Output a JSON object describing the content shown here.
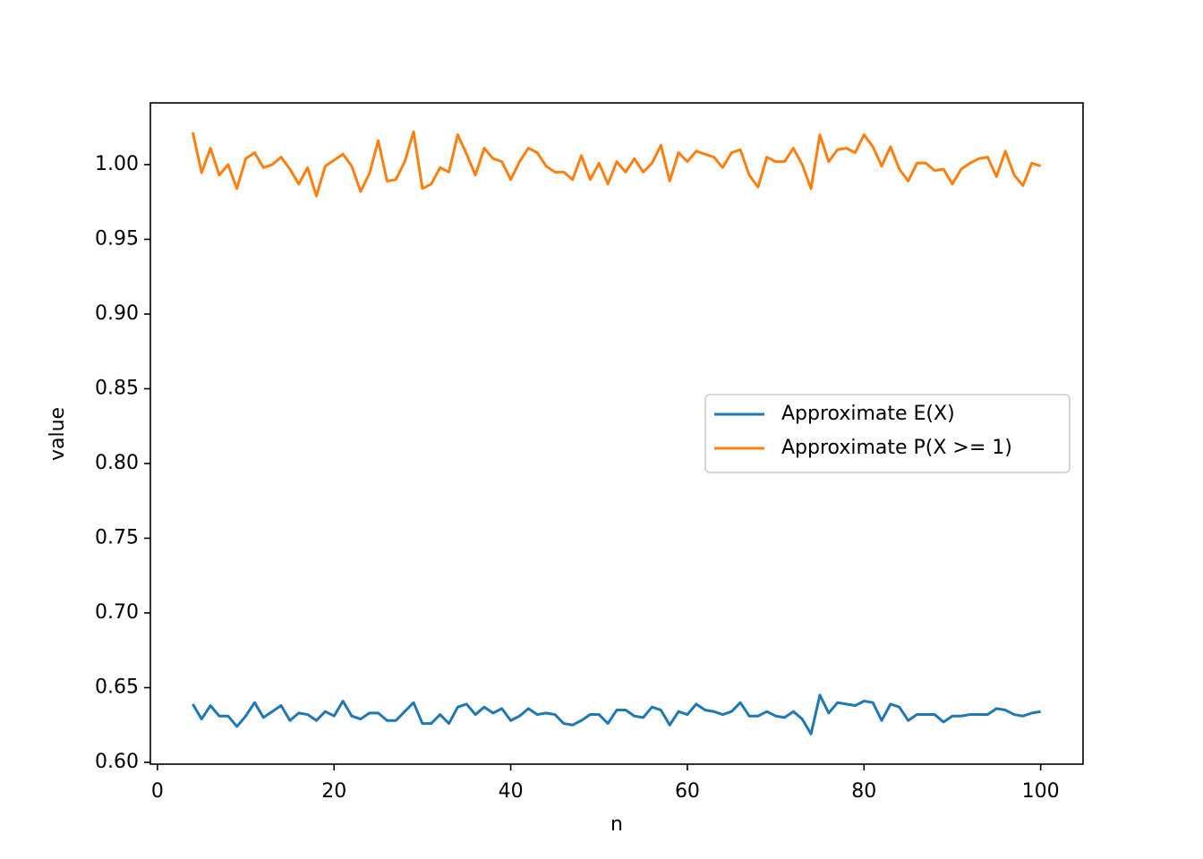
{
  "chart_data": {
    "type": "line",
    "xlabel": "n",
    "ylabel": "value",
    "x": [
      4,
      5,
      6,
      7,
      8,
      9,
      10,
      11,
      12,
      13,
      14,
      15,
      16,
      17,
      18,
      19,
      20,
      21,
      22,
      23,
      24,
      25,
      26,
      27,
      28,
      29,
      30,
      31,
      32,
      33,
      34,
      35,
      36,
      37,
      38,
      39,
      40,
      41,
      42,
      43,
      44,
      45,
      46,
      47,
      48,
      49,
      50,
      51,
      52,
      53,
      54,
      55,
      56,
      57,
      58,
      59,
      60,
      61,
      62,
      63,
      64,
      65,
      66,
      67,
      68,
      69,
      70,
      71,
      72,
      73,
      74,
      75,
      76,
      77,
      78,
      79,
      80,
      81,
      82,
      83,
      84,
      85,
      86,
      87,
      88,
      89,
      90,
      91,
      92,
      93,
      94,
      95,
      96,
      97,
      98,
      99,
      100
    ],
    "series": [
      {
        "name": "Approximate E(X)",
        "color": "#1f77b4",
        "values": [
          0.639,
          0.629,
          0.638,
          0.631,
          0.631,
          0.624,
          0.631,
          0.64,
          0.63,
          0.634,
          0.638,
          0.628,
          0.633,
          0.632,
          0.628,
          0.634,
          0.631,
          0.641,
          0.631,
          0.629,
          0.633,
          0.633,
          0.628,
          0.628,
          0.634,
          0.64,
          0.626,
          0.626,
          0.632,
          0.626,
          0.637,
          0.639,
          0.632,
          0.637,
          0.633,
          0.636,
          0.628,
          0.631,
          0.636,
          0.632,
          0.633,
          0.632,
          0.626,
          0.625,
          0.628,
          0.632,
          0.632,
          0.626,
          0.635,
          0.635,
          0.631,
          0.63,
          0.637,
          0.635,
          0.625,
          0.634,
          0.632,
          0.639,
          0.635,
          0.634,
          0.632,
          0.634,
          0.64,
          0.631,
          0.631,
          0.634,
          0.631,
          0.63,
          0.634,
          0.629,
          0.619,
          0.645,
          0.633,
          0.64,
          0.639,
          0.638,
          0.641,
          0.64,
          0.628,
          0.639,
          0.637,
          0.628,
          0.632,
          0.632,
          0.632,
          0.627,
          0.631,
          0.631,
          0.632,
          0.632,
          0.632,
          0.636,
          0.635,
          0.632,
          0.631,
          0.633,
          0.634
        ]
      },
      {
        "name": "Approximate P(X >= 1)",
        "color": "#ff7f0e",
        "values": [
          1.0216,
          0.9946,
          1.011,
          0.993,
          1.0,
          0.984,
          1.004,
          1.008,
          0.998,
          1.0,
          1.005,
          0.997,
          0.987,
          0.998,
          0.979,
          0.999,
          1.003,
          1.007,
          0.999,
          0.982,
          0.994,
          1.016,
          0.989,
          0.99,
          1.002,
          1.022,
          0.984,
          0.987,
          0.998,
          0.995,
          1.02,
          1.007,
          0.993,
          1.011,
          1.004,
          1.002,
          0.99,
          1.002,
          1.011,
          1.008,
          0.999,
          0.995,
          0.995,
          0.99,
          1.006,
          0.99,
          1.001,
          0.987,
          1.002,
          0.995,
          1.004,
          0.995,
          1.001,
          1.013,
          0.989,
          1.008,
          1.002,
          1.009,
          1.007,
          1.005,
          0.998,
          1.008,
          1.01,
          0.993,
          0.985,
          1.005,
          1.002,
          1.002,
          1.011,
          1.0,
          0.984,
          1.02,
          1.002,
          1.01,
          1.011,
          1.008,
          1.02,
          1.012,
          0.999,
          1.012,
          0.997,
          0.989,
          1.001,
          1.001,
          0.996,
          0.997,
          0.987,
          0.997,
          1.001,
          1.004,
          1.005,
          0.992,
          1.009,
          0.993,
          0.986,
          1.001,
          0.999
        ]
      }
    ],
    "xlim": [
      -0.8,
      104.8
    ],
    "ylim": [
      0.5988,
      1.0413
    ],
    "xticks": [
      0,
      20,
      40,
      60,
      80,
      100
    ],
    "yticks": [
      {
        "value": 0.6,
        "label": "0.60"
      },
      {
        "value": 0.65,
        "label": "0.65"
      },
      {
        "value": 0.7,
        "label": "0.70"
      },
      {
        "value": 0.75,
        "label": "0.75"
      },
      {
        "value": 0.8,
        "label": "0.80"
      },
      {
        "value": 0.85,
        "label": "0.85"
      },
      {
        "value": 0.9,
        "label": "0.90"
      },
      {
        "value": 0.95,
        "label": "0.95"
      },
      {
        "value": 1.0,
        "label": "1.00"
      }
    ],
    "grid": false,
    "legend": "center right"
  }
}
